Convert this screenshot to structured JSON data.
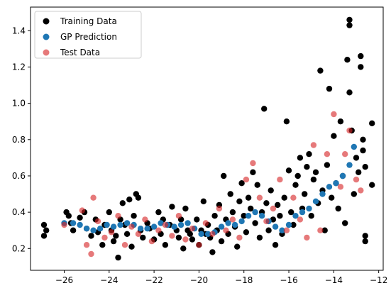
{
  "chart_data": {
    "type": "scatter",
    "title": "",
    "xlabel": "",
    "ylabel": "",
    "xlim": [
      -27.5,
      -11.8
    ],
    "ylim": [
      0.08,
      1.53
    ],
    "xticks": [
      -26,
      -24,
      -22,
      -20,
      -18,
      -16,
      -14,
      -12
    ],
    "yticks": [
      0.2,
      0.4,
      0.6,
      0.8,
      1.0,
      1.2,
      1.4
    ],
    "xtick_labels": [
      "−26",
      "−24",
      "−22",
      "−20",
      "−18",
      "−16",
      "−14",
      "−12"
    ],
    "ytick_labels": [
      "0.2",
      "0.4",
      "0.6",
      "0.8",
      "1.0",
      "1.2",
      "1.4"
    ],
    "grid": false,
    "legend_position": "top-left",
    "series": [
      {
        "name": "Training Data",
        "color": "#000000",
        "points": [
          [
            -26.9,
            0.33
          ],
          [
            -26.9,
            0.27
          ],
          [
            -26.8,
            0.3
          ],
          [
            -25.9,
            0.4
          ],
          [
            -25.8,
            0.38
          ],
          [
            -25.7,
            0.34
          ],
          [
            -25.6,
            0.3
          ],
          [
            -25.3,
            0.37
          ],
          [
            -25.1,
            0.4
          ],
          [
            -25.0,
            0.31
          ],
          [
            -24.8,
            0.27
          ],
          [
            -24.6,
            0.36
          ],
          [
            -24.5,
            0.29
          ],
          [
            -24.3,
            0.22
          ],
          [
            -24.2,
            0.33
          ],
          [
            -24.0,
            0.4
          ],
          [
            -23.9,
            0.3
          ],
          [
            -23.8,
            0.24
          ],
          [
            -23.7,
            0.27
          ],
          [
            -23.6,
            0.15
          ],
          [
            -23.5,
            0.36
          ],
          [
            -23.4,
            0.45
          ],
          [
            -23.3,
            0.33
          ],
          [
            -23.2,
            0.28
          ],
          [
            -23.1,
            0.47
          ],
          [
            -23.0,
            0.21
          ],
          [
            -22.9,
            0.38
          ],
          [
            -22.8,
            0.5
          ],
          [
            -22.7,
            0.48
          ],
          [
            -22.6,
            0.3
          ],
          [
            -22.5,
            0.26
          ],
          [
            -22.3,
            0.34
          ],
          [
            -22.2,
            0.31
          ],
          [
            -22.0,
            0.25
          ],
          [
            -21.8,
            0.4
          ],
          [
            -21.7,
            0.28
          ],
          [
            -21.6,
            0.36
          ],
          [
            -21.5,
            0.22
          ],
          [
            -21.3,
            0.33
          ],
          [
            -21.2,
            0.43
          ],
          [
            -21.0,
            0.3
          ],
          [
            -20.9,
            0.26
          ],
          [
            -20.8,
            0.36
          ],
          [
            -20.7,
            0.2
          ],
          [
            -20.6,
            0.42
          ],
          [
            -20.5,
            0.3
          ],
          [
            -20.4,
            0.28
          ],
          [
            -20.3,
            0.25
          ],
          [
            -20.1,
            0.36
          ],
          [
            -20.0,
            0.22
          ],
          [
            -19.9,
            0.3
          ],
          [
            -19.8,
            0.46
          ],
          [
            -19.7,
            0.28
          ],
          [
            -19.6,
            0.33
          ],
          [
            -19.5,
            0.26
          ],
          [
            -19.4,
            0.18
          ],
          [
            -19.3,
            0.38
          ],
          [
            -19.2,
            0.3
          ],
          [
            -19.1,
            0.44
          ],
          [
            -19.0,
            0.24
          ],
          [
            -18.9,
            0.6
          ],
          [
            -18.8,
            0.36
          ],
          [
            -18.7,
            0.28
          ],
          [
            -18.6,
            0.5
          ],
          [
            -18.5,
            0.4
          ],
          [
            -18.4,
            0.32
          ],
          [
            -18.3,
            0.21
          ],
          [
            -18.2,
            0.46
          ],
          [
            -18.1,
            0.56
          ],
          [
            -18.0,
            0.38
          ],
          [
            -17.9,
            0.29
          ],
          [
            -17.8,
            0.48
          ],
          [
            -17.7,
            0.42
          ],
          [
            -17.6,
            0.62
          ],
          [
            -17.5,
            0.34
          ],
          [
            -17.4,
            0.55
          ],
          [
            -17.3,
            0.26
          ],
          [
            -17.2,
            0.4
          ],
          [
            -17.1,
            0.97
          ],
          [
            -17.0,
            0.45
          ],
          [
            -16.9,
            0.3
          ],
          [
            -16.8,
            0.52
          ],
          [
            -16.7,
            0.36
          ],
          [
            -16.6,
            0.22
          ],
          [
            -16.5,
            0.44
          ],
          [
            -16.4,
            0.38
          ],
          [
            -16.3,
            0.28
          ],
          [
            -16.2,
            0.48
          ],
          [
            -16.1,
            0.9
          ],
          [
            -16.0,
            0.63
          ],
          [
            -15.9,
            0.4
          ],
          [
            -15.8,
            0.33
          ],
          [
            -15.7,
            0.55
          ],
          [
            -15.6,
            0.6
          ],
          [
            -15.5,
            0.7
          ],
          [
            -15.4,
            0.42
          ],
          [
            -15.3,
            0.5
          ],
          [
            -15.2,
            0.65
          ],
          [
            -15.1,
            0.72
          ],
          [
            -15.0,
            0.38
          ],
          [
            -14.9,
            0.58
          ],
          [
            -14.8,
            0.62
          ],
          [
            -14.7,
            0.45
          ],
          [
            -14.6,
            1.18
          ],
          [
            -14.5,
            0.52
          ],
          [
            -14.4,
            0.3
          ],
          [
            -14.3,
            0.66
          ],
          [
            -14.2,
            1.08
          ],
          [
            -14.1,
            0.48
          ],
          [
            -14.0,
            0.82
          ],
          [
            -13.9,
            0.56
          ],
          [
            -13.8,
            0.42
          ],
          [
            -13.7,
            0.9
          ],
          [
            -13.6,
            0.6
          ],
          [
            -13.5,
            0.34
          ],
          [
            -13.4,
            1.24
          ],
          [
            -13.3,
            1.46
          ],
          [
            -13.3,
            1.43
          ],
          [
            -13.3,
            1.06
          ],
          [
            -13.2,
            0.85
          ],
          [
            -13.1,
            0.5
          ],
          [
            -13.0,
            0.7
          ],
          [
            -12.9,
            0.62
          ],
          [
            -12.8,
            1.26
          ],
          [
            -12.8,
            1.2
          ],
          [
            -12.7,
            0.8
          ],
          [
            -12.7,
            0.74
          ],
          [
            -12.6,
            0.27
          ],
          [
            -12.6,
            0.24
          ],
          [
            -12.6,
            0.65
          ],
          [
            -12.3,
            0.89
          ],
          [
            -12.3,
            0.55
          ]
        ]
      },
      {
        "name": "GP Prediction",
        "color": "#1f77b4",
        "points": [
          [
            -26.0,
            0.34
          ],
          [
            -25.6,
            0.34
          ],
          [
            -25.3,
            0.33
          ],
          [
            -25.0,
            0.31
          ],
          [
            -24.7,
            0.3
          ],
          [
            -24.4,
            0.31
          ],
          [
            -24.1,
            0.33
          ],
          [
            -23.8,
            0.32
          ],
          [
            -23.5,
            0.33
          ],
          [
            -23.2,
            0.34
          ],
          [
            -22.9,
            0.33
          ],
          [
            -22.6,
            0.31
          ],
          [
            -22.3,
            0.31
          ],
          [
            -22.0,
            0.32
          ],
          [
            -21.7,
            0.34
          ],
          [
            -21.4,
            0.33
          ],
          [
            -21.1,
            0.32
          ],
          [
            -20.8,
            0.33
          ],
          [
            -20.5,
            0.34
          ],
          [
            -20.2,
            0.31
          ],
          [
            -19.9,
            0.28
          ],
          [
            -19.6,
            0.28
          ],
          [
            -19.3,
            0.29
          ],
          [
            -19.0,
            0.32
          ],
          [
            -18.7,
            0.34
          ],
          [
            -18.4,
            0.33
          ],
          [
            -18.1,
            0.35
          ],
          [
            -17.8,
            0.38
          ],
          [
            -17.5,
            0.4
          ],
          [
            -17.2,
            0.38
          ],
          [
            -16.9,
            0.35
          ],
          [
            -16.6,
            0.32
          ],
          [
            -16.3,
            0.3
          ],
          [
            -16.0,
            0.33
          ],
          [
            -15.7,
            0.38
          ],
          [
            -15.4,
            0.4
          ],
          [
            -15.1,
            0.42
          ],
          [
            -14.8,
            0.46
          ],
          [
            -14.5,
            0.5
          ],
          [
            -14.2,
            0.54
          ],
          [
            -13.9,
            0.56
          ],
          [
            -13.6,
            0.6
          ],
          [
            -13.3,
            0.66
          ],
          [
            -13.1,
            0.76
          ]
        ]
      },
      {
        "name": "Test Data",
        "color": "#d62728",
        "points": [
          [
            -26.0,
            0.33
          ],
          [
            -25.2,
            0.41
          ],
          [
            -25.0,
            0.22
          ],
          [
            -24.8,
            0.17
          ],
          [
            -24.7,
            0.48
          ],
          [
            -24.5,
            0.35
          ],
          [
            -24.2,
            0.26
          ],
          [
            -23.9,
            0.29
          ],
          [
            -23.6,
            0.38
          ],
          [
            -23.3,
            0.22
          ],
          [
            -23.0,
            0.32
          ],
          [
            -22.7,
            0.28
          ],
          [
            -22.4,
            0.36
          ],
          [
            -22.1,
            0.24
          ],
          [
            -21.8,
            0.3
          ],
          [
            -21.5,
            0.33
          ],
          [
            -21.2,
            0.27
          ],
          [
            -20.9,
            0.38
          ],
          [
            -20.6,
            0.25
          ],
          [
            -20.3,
            0.31
          ],
          [
            -20.0,
            0.22
          ],
          [
            -19.7,
            0.34
          ],
          [
            -19.4,
            0.28
          ],
          [
            -19.1,
            0.42
          ],
          [
            -18.8,
            0.3
          ],
          [
            -18.5,
            0.36
          ],
          [
            -18.2,
            0.26
          ],
          [
            -17.9,
            0.58
          ],
          [
            -17.6,
            0.67
          ],
          [
            -17.3,
            0.48
          ],
          [
            -17.0,
            0.35
          ],
          [
            -16.7,
            0.42
          ],
          [
            -16.4,
            0.58
          ],
          [
            -16.1,
            0.3
          ],
          [
            -15.8,
            0.48
          ],
          [
            -15.5,
            0.36
          ],
          [
            -15.2,
            0.26
          ],
          [
            -14.9,
            0.77
          ],
          [
            -14.6,
            0.3
          ],
          [
            -14.3,
            0.72
          ],
          [
            -14.0,
            0.94
          ],
          [
            -13.7,
            0.54
          ],
          [
            -13.5,
            0.72
          ],
          [
            -13.3,
            0.85
          ],
          [
            -13.0,
            0.58
          ],
          [
            -12.8,
            0.52
          ]
        ]
      }
    ]
  }
}
